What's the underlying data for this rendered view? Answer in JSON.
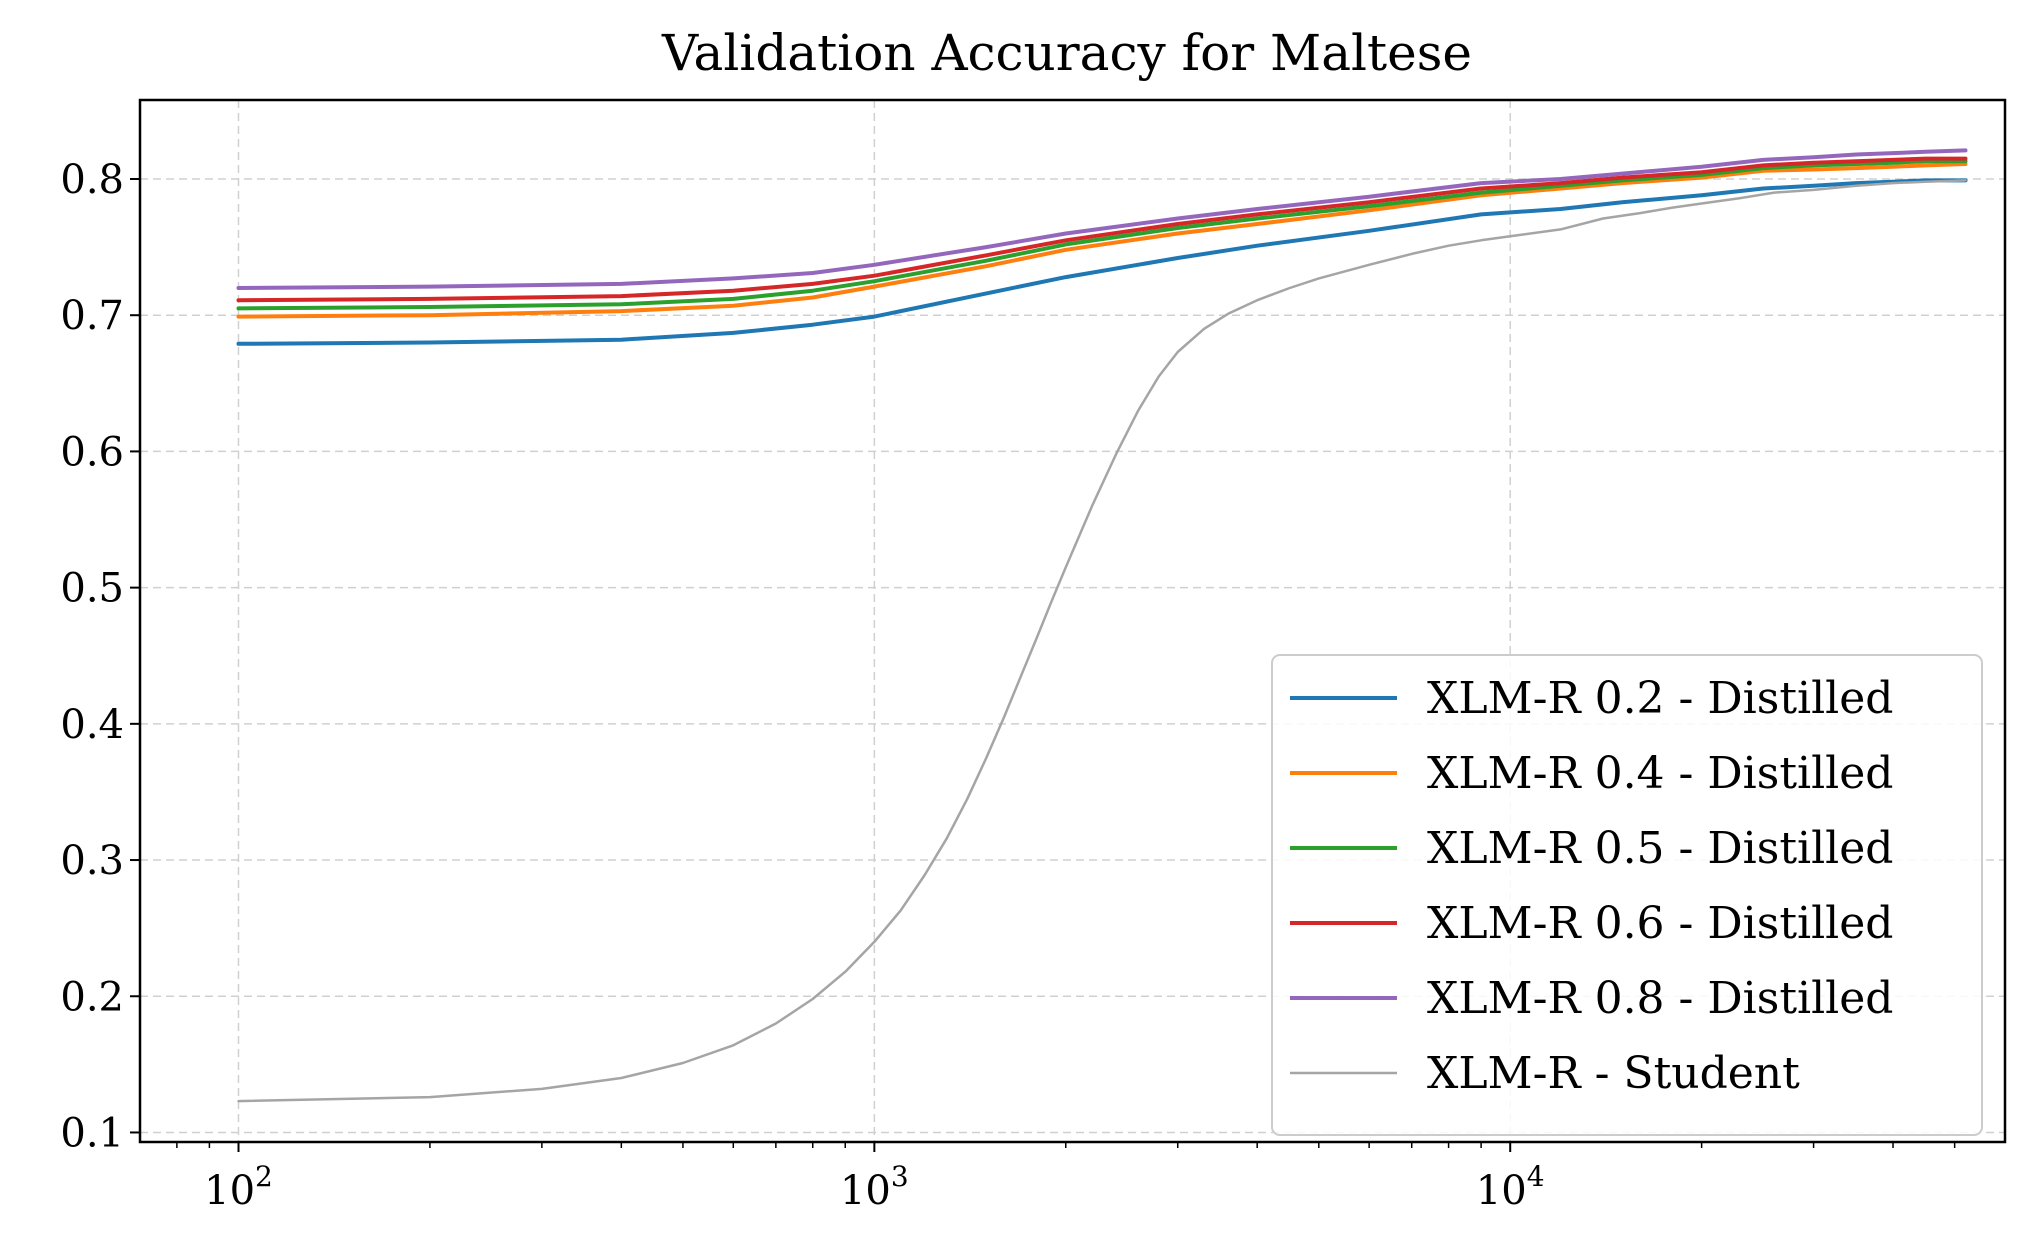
{
  "chart_data": {
    "type": "line",
    "title": "Validation Accuracy for Maltese",
    "xlabel": "",
    "ylabel": "",
    "x_scale": "log",
    "xlim": [
      70,
      60000
    ],
    "ylim": [
      0.093,
      0.858
    ],
    "grid": true,
    "legend_position": "lower-right",
    "x_ticks": [
      {
        "value": 100,
        "base": "10",
        "exp": "2"
      },
      {
        "value": 1000,
        "base": "10",
        "exp": "3"
      },
      {
        "value": 10000,
        "base": "10",
        "exp": "4"
      }
    ],
    "y_ticks": [
      {
        "value": 0.1,
        "label": "0.1"
      },
      {
        "value": 0.2,
        "label": "0.2"
      },
      {
        "value": 0.3,
        "label": "0.3"
      },
      {
        "value": 0.4,
        "label": "0.4"
      },
      {
        "value": 0.5,
        "label": "0.5"
      },
      {
        "value": 0.6,
        "label": "0.6"
      },
      {
        "value": 0.7,
        "label": "0.7"
      },
      {
        "value": 0.8,
        "label": "0.8"
      }
    ],
    "series": [
      {
        "name": "XLM-R 0.2 - Distilled",
        "color": "#1f77b4",
        "width": 4,
        "x": [
          100,
          200,
          400,
          600,
          800,
          1000,
          1500,
          2000,
          3000,
          4000,
          6000,
          9000,
          12000,
          15000,
          20000,
          25000,
          30000,
          35000,
          40000,
          45000,
          52000
        ],
        "y": [
          0.679,
          0.68,
          0.682,
          0.687,
          0.693,
          0.699,
          0.716,
          0.728,
          0.742,
          0.751,
          0.762,
          0.774,
          0.778,
          0.783,
          0.788,
          0.793,
          0.795,
          0.797,
          0.798,
          0.799,
          0.799
        ]
      },
      {
        "name": "XLM-R 0.4 - Distilled",
        "color": "#ff7f0e",
        "width": 4,
        "x": [
          100,
          200,
          400,
          600,
          800,
          1000,
          1500,
          2000,
          3000,
          4000,
          6000,
          9000,
          12000,
          15000,
          20000,
          25000,
          30000,
          35000,
          40000,
          45000,
          52000
        ],
        "y": [
          0.699,
          0.7,
          0.703,
          0.707,
          0.713,
          0.721,
          0.736,
          0.748,
          0.76,
          0.767,
          0.777,
          0.788,
          0.793,
          0.797,
          0.801,
          0.806,
          0.807,
          0.808,
          0.809,
          0.81,
          0.811
        ]
      },
      {
        "name": "XLM-R 0.5 - Distilled",
        "color": "#2ca02c",
        "width": 4,
        "x": [
          100,
          200,
          400,
          600,
          800,
          1000,
          1500,
          2000,
          3000,
          4000,
          6000,
          9000,
          12000,
          15000,
          20000,
          25000,
          30000,
          35000,
          40000,
          45000,
          52000
        ],
        "y": [
          0.705,
          0.706,
          0.708,
          0.712,
          0.718,
          0.725,
          0.74,
          0.752,
          0.764,
          0.771,
          0.78,
          0.79,
          0.795,
          0.799,
          0.803,
          0.808,
          0.81,
          0.811,
          0.812,
          0.813,
          0.813
        ]
      },
      {
        "name": "XLM-R 0.6 - Distilled",
        "color": "#d62728",
        "width": 4,
        "x": [
          100,
          200,
          400,
          600,
          800,
          1000,
          1500,
          2000,
          3000,
          4000,
          6000,
          9000,
          12000,
          15000,
          20000,
          25000,
          30000,
          35000,
          40000,
          45000,
          52000
        ],
        "y": [
          0.711,
          0.712,
          0.714,
          0.718,
          0.723,
          0.729,
          0.744,
          0.755,
          0.767,
          0.774,
          0.783,
          0.793,
          0.797,
          0.801,
          0.805,
          0.81,
          0.812,
          0.813,
          0.814,
          0.815,
          0.815
        ]
      },
      {
        "name": "XLM-R 0.8 - Distilled",
        "color": "#9467bd",
        "width": 4,
        "x": [
          100,
          200,
          400,
          600,
          800,
          1000,
          1500,
          2000,
          3000,
          4000,
          6000,
          9000,
          12000,
          15000,
          20000,
          25000,
          30000,
          35000,
          40000,
          45000,
          52000
        ],
        "y": [
          0.72,
          0.721,
          0.723,
          0.727,
          0.731,
          0.737,
          0.75,
          0.76,
          0.771,
          0.778,
          0.787,
          0.797,
          0.8,
          0.804,
          0.809,
          0.814,
          0.816,
          0.818,
          0.819,
          0.82,
          0.821
        ]
      },
      {
        "name": "XLM-R - Student",
        "color": "#a5a5a5",
        "width": 2.5,
        "x": [
          100,
          200,
          300,
          400,
          500,
          600,
          700,
          800,
          900,
          1000,
          1100,
          1200,
          1300,
          1400,
          1500,
          1600,
          1700,
          1800,
          1900,
          2000,
          2200,
          2400,
          2600,
          2800,
          3000,
          3300,
          3600,
          4000,
          4500,
          5000,
          6000,
          7000,
          8000,
          9000,
          10000,
          12000,
          14000,
          16000,
          18000,
          20000,
          23000,
          26000,
          30000,
          35000,
          40000,
          45000,
          52000
        ],
        "y": [
          0.123,
          0.126,
          0.132,
          0.14,
          0.151,
          0.164,
          0.18,
          0.198,
          0.218,
          0.24,
          0.263,
          0.289,
          0.316,
          0.345,
          0.375,
          0.405,
          0.435,
          0.463,
          0.49,
          0.515,
          0.56,
          0.598,
          0.63,
          0.655,
          0.673,
          0.69,
          0.701,
          0.711,
          0.72,
          0.727,
          0.737,
          0.745,
          0.751,
          0.755,
          0.758,
          0.763,
          0.771,
          0.775,
          0.779,
          0.782,
          0.786,
          0.79,
          0.792,
          0.795,
          0.797,
          0.798,
          0.799
        ]
      }
    ]
  }
}
